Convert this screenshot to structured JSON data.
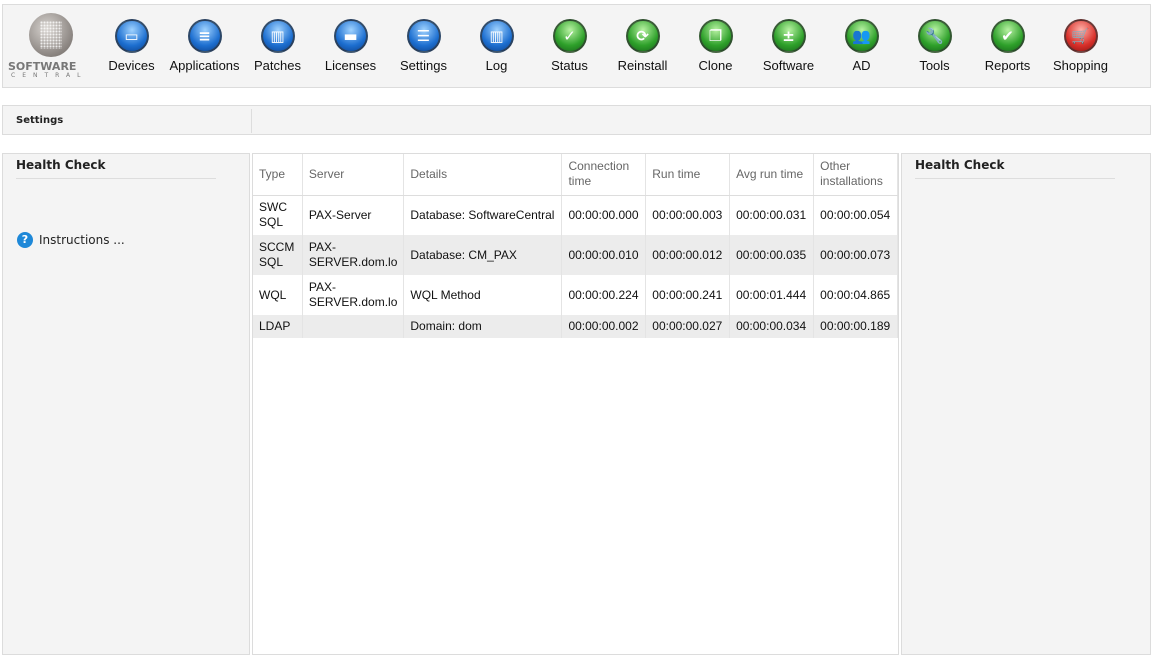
{
  "logo": {
    "line1": "SOFTWARE",
    "line2": "CENTRAL"
  },
  "toolbar": [
    {
      "label": "Devices",
      "icon": "monitor-icon",
      "color": "blue",
      "glyph": "▭"
    },
    {
      "label": "Applications",
      "icon": "stack-icon",
      "color": "blue",
      "glyph": "≡"
    },
    {
      "label": "Patches",
      "icon": "book-icon",
      "color": "blue",
      "glyph": "▥"
    },
    {
      "label": "Licenses",
      "icon": "folder-icon",
      "color": "blue",
      "glyph": "▬"
    },
    {
      "label": "Settings",
      "icon": "list-icon",
      "color": "blue",
      "glyph": "☰"
    },
    {
      "label": "Log",
      "icon": "book-icon",
      "color": "blue",
      "glyph": "▥"
    },
    {
      "label": "Status",
      "icon": "check-icon",
      "color": "green",
      "glyph": "✓"
    },
    {
      "label": "Reinstall",
      "icon": "refresh-icon",
      "color": "green",
      "glyph": "⟳"
    },
    {
      "label": "Clone",
      "icon": "copy-icon",
      "color": "green",
      "glyph": "❐"
    },
    {
      "label": "Software",
      "icon": "plus-minus-icon",
      "color": "green",
      "glyph": "±"
    },
    {
      "label": "AD",
      "icon": "users-icon",
      "color": "green",
      "glyph": "👥"
    },
    {
      "label": "Tools",
      "icon": "wrench-icon",
      "color": "green",
      "glyph": "🔧"
    },
    {
      "label": "Reports",
      "icon": "clipboard-check-icon",
      "color": "green",
      "glyph": "✔"
    },
    {
      "label": "Shopping",
      "icon": "cart-icon",
      "color": "red",
      "glyph": "🛒"
    }
  ],
  "breadcrumb": "Settings",
  "left": {
    "title": "Health Check",
    "instructions": "Instructions ..."
  },
  "right": {
    "title": "Health Check"
  },
  "table": {
    "headers": [
      "Type",
      "Server",
      "Details",
      "Connection time",
      "Run time",
      "Avg run time",
      "Other installations"
    ],
    "rows": [
      [
        "SWC SQL",
        "PAX-Server",
        "Database: SoftwareCentral",
        "00:00:00.000",
        "00:00:00.003",
        "00:00:00.031",
        "00:00:00.054"
      ],
      [
        "SCCM SQL",
        "PAX-SERVER.dom.lo",
        "Database: CM_PAX",
        "00:00:00.010",
        "00:00:00.012",
        "00:00:00.035",
        "00:00:00.073"
      ],
      [
        "WQL",
        "PAX-SERVER.dom.lo",
        "WQL Method",
        "00:00:00.224",
        "00:00:00.241",
        "00:00:01.444",
        "00:00:04.865"
      ],
      [
        "LDAP",
        "",
        "Domain: dom",
        "00:00:00.002",
        "00:00:00.027",
        "00:00:00.034",
        "00:00:00.189"
      ]
    ]
  }
}
